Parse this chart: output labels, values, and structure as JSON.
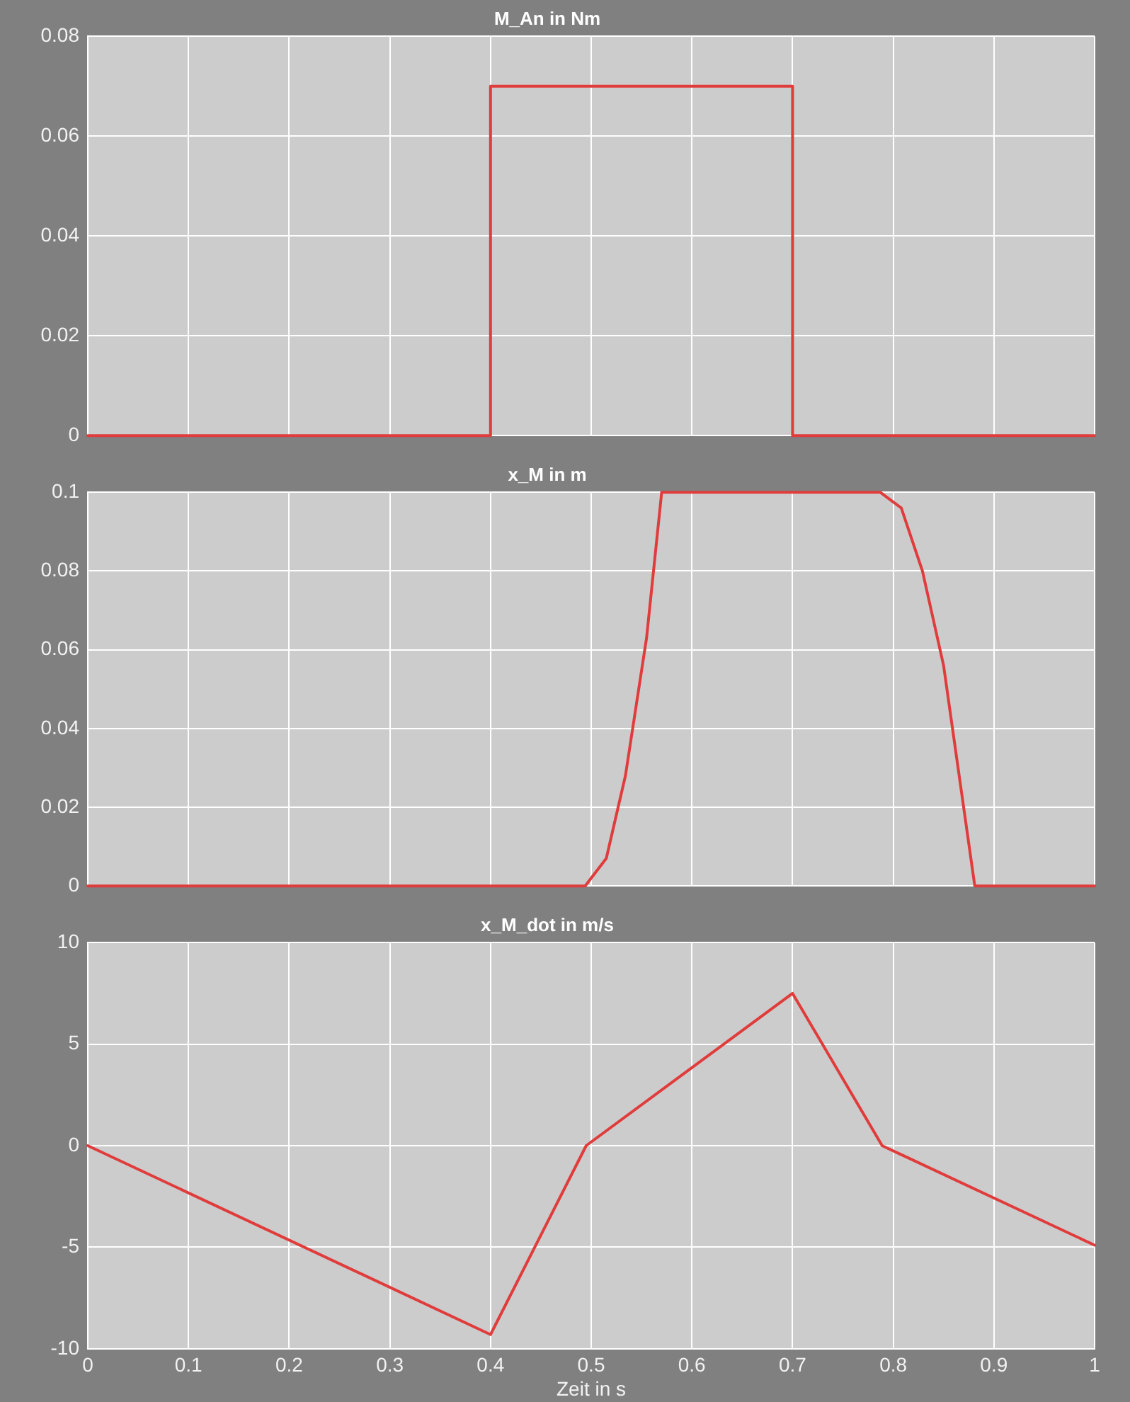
{
  "chart_data": [
    {
      "type": "line",
      "title": "M_An in Nm",
      "x": [
        0,
        0.4,
        0.4,
        0.7,
        0.7,
        1
      ],
      "series": [
        {
          "color": "#e03c3c",
          "values": [
            0,
            0,
            0.07,
            0.07,
            0,
            0
          ]
        }
      ],
      "xlim": [
        0,
        1
      ],
      "xticks": [
        0,
        0.1,
        0.2,
        0.3,
        0.4,
        0.5,
        0.6,
        0.7,
        0.8,
        0.9,
        1
      ],
      "ylim": [
        0,
        0.08
      ],
      "yticks": [
        0,
        0.02,
        0.04,
        0.06,
        0.08
      ],
      "tick_labels": "y",
      "grid": true,
      "legend": false,
      "marker": "none",
      "line_style": "solid"
    },
    {
      "type": "line",
      "title": "x_M in m",
      "x": [
        0,
        0.494,
        0.515,
        0.534,
        0.555,
        0.57,
        0.787,
        0.808,
        0.829,
        0.85,
        0.881,
        1
      ],
      "series": [
        {
          "color": "#e03c3c",
          "values": [
            0,
            0,
            0.007,
            0.028,
            0.063,
            0.1,
            0.1,
            0.096,
            0.08,
            0.056,
            0,
            0
          ]
        }
      ],
      "xlim": [
        0,
        1
      ],
      "xticks": [
        0,
        0.1,
        0.2,
        0.3,
        0.4,
        0.5,
        0.6,
        0.7,
        0.8,
        0.9,
        1
      ],
      "ylim": [
        0,
        0.1
      ],
      "yticks": [
        0,
        0.02,
        0.04,
        0.06,
        0.08,
        0.1
      ],
      "tick_labels": "y",
      "grid": true,
      "legend": false,
      "marker": "none",
      "line_style": "solid"
    },
    {
      "type": "line",
      "title": "x_M_dot in m/s",
      "xlabel": "Zeit in s",
      "x": [
        0,
        0.4,
        0.495,
        0.7,
        0.789,
        1
      ],
      "series": [
        {
          "color": "#e03c3c",
          "values": [
            0,
            -9.3,
            0,
            7.5,
            0,
            -4.9
          ]
        }
      ],
      "xlim": [
        0,
        1
      ],
      "xticks": [
        0,
        0.1,
        0.2,
        0.3,
        0.4,
        0.5,
        0.6,
        0.7,
        0.8,
        0.9,
        1
      ],
      "ylim": [
        -10,
        10
      ],
      "yticks": [
        -10,
        -5,
        0,
        5,
        10
      ],
      "grid": true,
      "legend": false,
      "marker": "none",
      "line_style": "solid"
    }
  ]
}
